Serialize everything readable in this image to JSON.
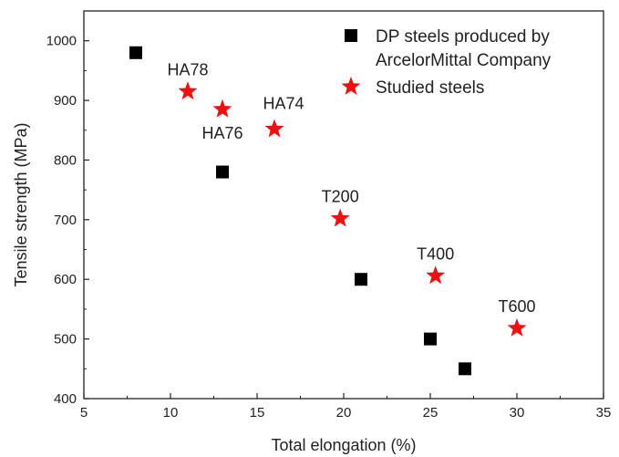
{
  "chart_data": {
    "type": "scatter",
    "title": "",
    "xlabel": "Total elongation (%)",
    "ylabel": "Tensile strength (MPa)",
    "xlim": [
      5,
      35
    ],
    "ylim": [
      400,
      1050
    ],
    "xticks": [
      5,
      10,
      15,
      20,
      25,
      30,
      35
    ],
    "yticks": [
      400,
      500,
      600,
      700,
      800,
      900,
      1000
    ],
    "xtick_labels": [
      "5",
      "10",
      "15",
      "20",
      "25",
      "30",
      "35"
    ],
    "ytick_labels": [
      "400",
      "500",
      "600",
      "700",
      "800",
      "900",
      "1000"
    ],
    "grid": false,
    "legend_position": "top-right",
    "series": [
      {
        "name": "DP steels produced by ArcelorMittal Company",
        "legend_lines": [
          "DP steels produced by",
          "ArcelorMittal Company"
        ],
        "marker": "square",
        "color": "#000000",
        "points": [
          {
            "x": 8,
            "y": 980
          },
          {
            "x": 13,
            "y": 780
          },
          {
            "x": 21,
            "y": 600
          },
          {
            "x": 25,
            "y": 500
          },
          {
            "x": 27,
            "y": 450
          }
        ]
      },
      {
        "name": "Studied steels",
        "legend_lines": [
          "Studied steels"
        ],
        "marker": "star",
        "color": "#ee1111",
        "points": [
          {
            "x": 11,
            "y": 915,
            "label": "HA78"
          },
          {
            "x": 13,
            "y": 885,
            "label": "HA76"
          },
          {
            "x": 16,
            "y": 852,
            "label": "HA74"
          },
          {
            "x": 19.8,
            "y": 702,
            "label": "T200"
          },
          {
            "x": 25.3,
            "y": 606,
            "label": "T400"
          },
          {
            "x": 30,
            "y": 518,
            "label": "T600"
          }
        ]
      }
    ]
  }
}
